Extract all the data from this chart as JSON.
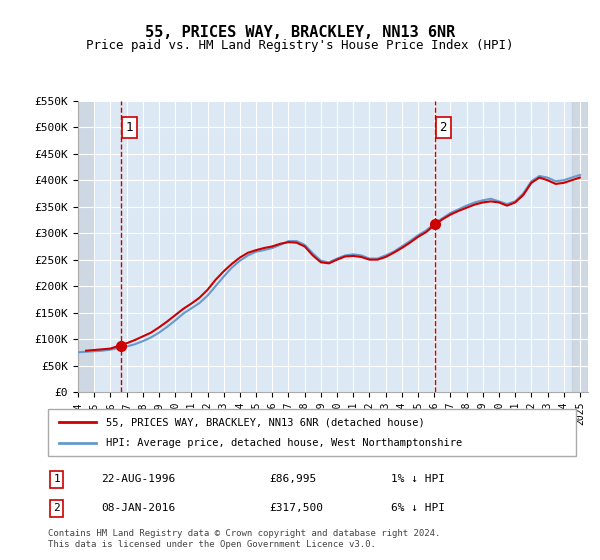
{
  "title": "55, PRICES WAY, BRACKLEY, NN13 6NR",
  "subtitle": "Price paid vs. HM Land Registry's House Price Index (HPI)",
  "legend_line1": "55, PRICES WAY, BRACKLEY, NN13 6NR (detached house)",
  "legend_line2": "HPI: Average price, detached house, West Northamptonshire",
  "annotation1_label": "1",
  "annotation1_date": "22-AUG-1996",
  "annotation1_price": "£86,995",
  "annotation1_hpi": "1% ↓ HPI",
  "annotation2_label": "2",
  "annotation2_date": "08-JAN-2016",
  "annotation2_price": "£317,500",
  "annotation2_hpi": "6% ↓ HPI",
  "footnote": "Contains HM Land Registry data © Crown copyright and database right 2024.\nThis data is licensed under the Open Government Licence v3.0.",
  "ylim": [
    0,
    550000
  ],
  "yticks": [
    0,
    50000,
    100000,
    150000,
    200000,
    250000,
    300000,
    350000,
    400000,
    450000,
    500000,
    550000
  ],
  "ytick_labels": [
    "£0",
    "£50K",
    "£100K",
    "£150K",
    "£200K",
    "£250K",
    "£300K",
    "£350K",
    "£400K",
    "£450K",
    "£500K",
    "£550K"
  ],
  "xmin": 1994.0,
  "xmax": 2025.5,
  "marker1_x": 1996.64,
  "marker1_y": 86995,
  "marker2_x": 2016.03,
  "marker2_y": 317500,
  "plot_bg_color": "#dce9f5",
  "hatch_color": "#c0c8d0",
  "grid_color": "#ffffff",
  "line_price_color": "#cc0000",
  "line_hpi_color": "#6699cc",
  "vline_color": "#cc0000",
  "marker_color": "#cc0000",
  "hpi_years": [
    1994,
    1994.5,
    1995,
    1995.5,
    1996,
    1996.5,
    1997,
    1997.5,
    1998,
    1998.5,
    1999,
    1999.5,
    2000,
    2000.5,
    2001,
    2001.5,
    2002,
    2002.5,
    2003,
    2003.5,
    2004,
    2004.5,
    2005,
    2005.5,
    2006,
    2006.5,
    2007,
    2007.5,
    2008,
    2008.5,
    2009,
    2009.5,
    2010,
    2010.5,
    2011,
    2011.5,
    2012,
    2012.5,
    2013,
    2013.5,
    2014,
    2014.5,
    2015,
    2015.5,
    2016,
    2016.5,
    2017,
    2017.5,
    2018,
    2018.5,
    2019,
    2019.5,
    2020,
    2020.5,
    2021,
    2021.5,
    2022,
    2022.5,
    2023,
    2023.5,
    2024,
    2024.5,
    2025
  ],
  "hpi_values": [
    75000,
    76000,
    77000,
    78000,
    80000,
    83000,
    86000,
    90000,
    96000,
    103000,
    112000,
    123000,
    135000,
    148000,
    158000,
    168000,
    182000,
    200000,
    218000,
    235000,
    248000,
    258000,
    265000,
    268000,
    272000,
    278000,
    285000,
    285000,
    278000,
    262000,
    248000,
    245000,
    252000,
    258000,
    260000,
    258000,
    252000,
    252000,
    258000,
    265000,
    275000,
    285000,
    296000,
    305000,
    318000,
    328000,
    338000,
    345000,
    352000,
    358000,
    362000,
    365000,
    360000,
    355000,
    360000,
    375000,
    398000,
    408000,
    405000,
    398000,
    400000,
    405000,
    410000
  ],
  "price_years": [
    1994.5,
    1996.0,
    1996.5,
    1997.0,
    1997.5,
    1998.0,
    1998.5,
    1999.0,
    1999.5,
    2000.0,
    2000.5,
    2001.0,
    2001.5,
    2002.0,
    2002.5,
    2003.0,
    2003.5,
    2004.0,
    2004.5,
    2005.0,
    2005.5,
    2006.0,
    2006.5,
    2007.0,
    2007.5,
    2008.0,
    2008.5,
    2009.0,
    2009.5,
    2010.0,
    2010.5,
    2011.0,
    2011.5,
    2012.0,
    2012.5,
    2013.0,
    2013.5,
    2014.0,
    2014.5,
    2015.0,
    2015.5,
    2016.0,
    2016.5,
    2017.0,
    2017.5,
    2018.0,
    2018.5,
    2019.0,
    2019.5,
    2020.0,
    2020.5,
    2021.0,
    2021.5,
    2022.0,
    2022.5,
    2023.0,
    2023.5,
    2024.0,
    2024.5,
    2025.0
  ],
  "price_values": [
    78000,
    82000,
    87000,
    92000,
    98000,
    105000,
    112000,
    122000,
    133000,
    145000,
    157000,
    167000,
    178000,
    193000,
    212000,
    228000,
    242000,
    254000,
    263000,
    268000,
    272000,
    275000,
    280000,
    283000,
    282000,
    275000,
    258000,
    245000,
    243000,
    250000,
    256000,
    257000,
    255000,
    250000,
    250000,
    255000,
    263000,
    272000,
    282000,
    293000,
    302000,
    315000,
    326000,
    335000,
    342000,
    348000,
    354000,
    358000,
    360000,
    358000,
    352000,
    358000,
    372000,
    395000,
    405000,
    400000,
    393000,
    395000,
    400000,
    405000
  ]
}
